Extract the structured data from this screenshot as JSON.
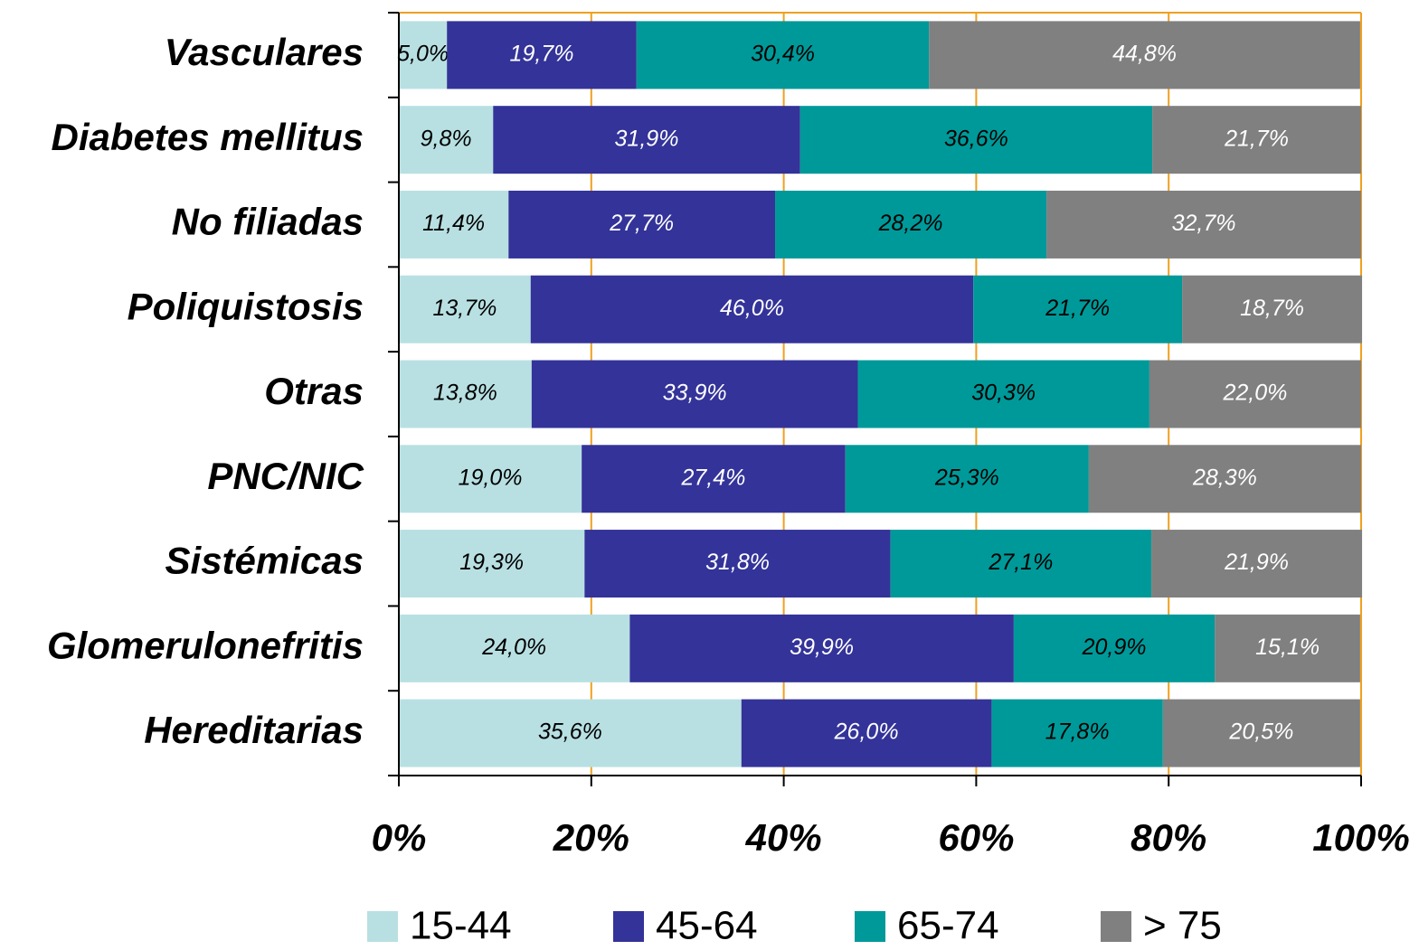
{
  "chart_data": {
    "type": "stacked_barh",
    "categories": [
      "Vasculares",
      "Diabetes mellitus",
      "No filiadas",
      "Poliquistosis",
      "Otras",
      "PNC/NIC",
      "Sistémicas",
      "Glomerulonefritis",
      "Hereditarias"
    ],
    "series": [
      {
        "name": "15-44",
        "color": "#b8e0e2",
        "label_color": "#000000",
        "values": [
          5.0,
          9.8,
          11.4,
          13.7,
          13.8,
          19.0,
          19.3,
          24.0,
          35.6
        ],
        "value_labels": [
          "5,0%",
          "9,8%",
          "11,4%",
          "13,7%",
          "13,8%",
          "19,0%",
          "19,3%",
          "24,0%",
          "35,6%"
        ]
      },
      {
        "name": "45-64",
        "color": "#333399",
        "label_color": "#ffffff",
        "values": [
          19.7,
          31.9,
          27.7,
          46.0,
          33.9,
          27.4,
          31.8,
          39.9,
          26.0
        ],
        "value_labels": [
          "19,7%",
          "31,9%",
          "27,7%",
          "46,0%",
          "33,9%",
          "27,4%",
          "31,8%",
          "39,9%",
          "26,0%"
        ]
      },
      {
        "name": "65-74",
        "color": "#009999",
        "label_color": "#000000",
        "values": [
          30.4,
          36.6,
          28.2,
          21.7,
          30.3,
          25.3,
          27.1,
          20.9,
          17.8
        ],
        "value_labels": [
          "30,4%",
          "36,6%",
          "28,2%",
          "21,7%",
          "30,3%",
          "25,3%",
          "27,1%",
          "20,9%",
          "17,8%"
        ]
      },
      {
        "name": "> 75",
        "color": "#808080",
        "label_color": "#ffffff",
        "values": [
          44.8,
          21.7,
          32.7,
          18.7,
          22.0,
          28.3,
          21.9,
          15.1,
          20.5
        ],
        "value_labels": [
          "44,8%",
          "21,7%",
          "32,7%",
          "18,7%",
          "22,0%",
          "28,3%",
          "21,9%",
          "15,1%",
          "20,5%"
        ]
      }
    ],
    "xlim": [
      0,
      100
    ],
    "xticks": [
      {
        "value": 0,
        "label": "0%"
      },
      {
        "value": 20,
        "label": "20%"
      },
      {
        "value": 40,
        "label": "40%"
      },
      {
        "value": 60,
        "label": "60%"
      },
      {
        "value": 80,
        "label": "80%"
      },
      {
        "value": 100,
        "label": "100%"
      }
    ],
    "grid": true,
    "grid_color": "#f0a020",
    "legend": "bottom"
  }
}
